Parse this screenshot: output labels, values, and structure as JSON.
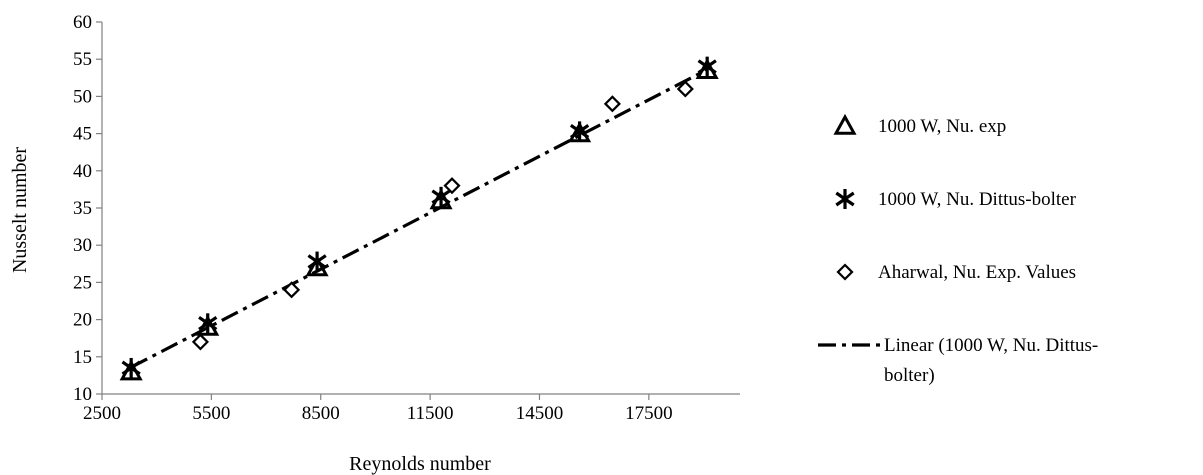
{
  "chart_data": {
    "type": "scatter",
    "title": "",
    "xlabel": "Reynolds number",
    "ylabel": "Nusselt number",
    "xlim": [
      2500,
      20000
    ],
    "ylim": [
      10,
      60
    ],
    "x_ticks": [
      2500,
      5500,
      8500,
      11500,
      14500,
      17500
    ],
    "y_ticks": [
      10,
      15,
      20,
      25,
      30,
      35,
      40,
      45,
      50,
      55,
      60
    ],
    "grid": false,
    "legend_position": "right",
    "series": [
      {
        "name": "1000 W, Nu. exp",
        "marker": "triangle",
        "x": [
          3300,
          5400,
          8400,
          11800,
          15600,
          19100
        ],
        "y": [
          13,
          19,
          27,
          36,
          45,
          53.5
        ]
      },
      {
        "name": "1000 W, Nu. Dittus-bolter",
        "marker": "asterisk",
        "x": [
          3300,
          5400,
          8400,
          11800,
          15600,
          19100
        ],
        "y": [
          13.5,
          19.5,
          27.8,
          36.5,
          45.3,
          54
        ]
      },
      {
        "name": "Aharwal, Nu. Exp. Values",
        "marker": "diamond",
        "x": [
          5200,
          7700,
          12100,
          16500,
          18500
        ],
        "y": [
          17,
          24,
          38,
          49,
          51
        ]
      }
    ],
    "trendline": {
      "name": "Linear (1000 W, Nu. Dittus-bolter)",
      "legend_lines": [
        "Linear (1000 W, Nu. Dittus-",
        "bolter)"
      ],
      "style": "dash-dot",
      "x": [
        3300,
        19100
      ],
      "y": [
        13.6,
        53.6
      ]
    }
  }
}
